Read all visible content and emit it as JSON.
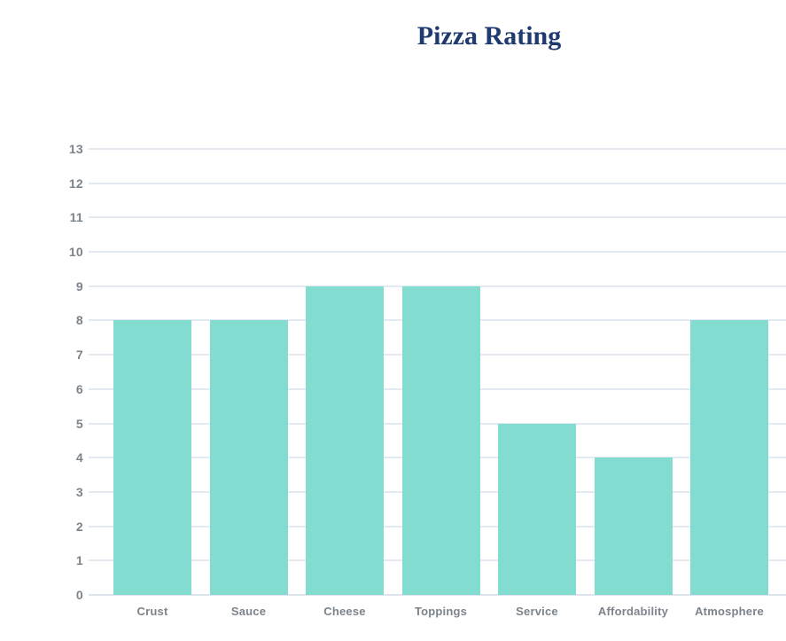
{
  "page": {
    "title": "Pizza Rating"
  },
  "chart_data": {
    "type": "bar",
    "title": "Pizza Rating",
    "categories": [
      "Crust",
      "Sauce",
      "Cheese",
      "Toppings",
      "Service",
      "Affordability",
      "Atmosphere"
    ],
    "values": [
      8,
      8,
      9,
      9,
      5,
      4,
      8
    ],
    "xlabel": "",
    "ylabel": "",
    "ylim": [
      0,
      13
    ],
    "ytick_step": 1,
    "ytick_labels": [
      "0",
      "1",
      "2",
      "3",
      "4",
      "5",
      "6",
      "7",
      "8",
      "9",
      "10",
      "11",
      "12",
      "13"
    ],
    "grid": true,
    "legend_position": "none",
    "colors": {
      "bar": "#82dcd0",
      "title": "#1f3a6e",
      "tick_label": "#7b838b",
      "gridline": "#e4eaf1",
      "baseline": "#dde4eb",
      "background": "#ffffff"
    }
  }
}
